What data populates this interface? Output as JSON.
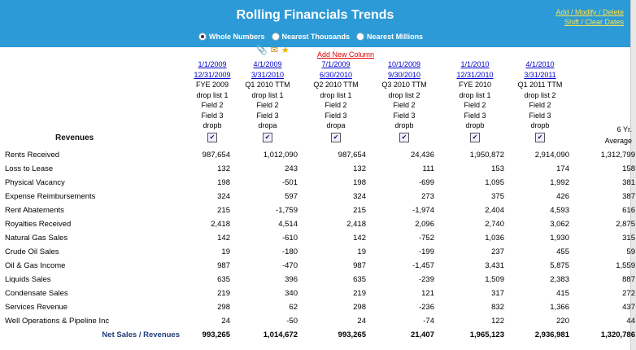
{
  "header": {
    "title": "Rolling Financials Trends",
    "links": [
      "Add / Modify / Delete",
      "Shift / Clear Dates"
    ]
  },
  "rounding": {
    "options": [
      "Whole Numbers",
      "Nearest Thousands",
      "Nearest Millions"
    ],
    "selected": 0
  },
  "toolbar": {
    "add_column": "Add New Column"
  },
  "columns": [
    {
      "date1": "1/1/2009",
      "date2": "12/31/2009",
      "period": "FYE 2009",
      "list": "drop list 1",
      "f2": "Field 2",
      "f3": "Field 3",
      "drop": "dropb"
    },
    {
      "date1": "4/1/2009",
      "date2": "3/31/2010",
      "period": "Q1 2010 TTM",
      "list": "drop list 1",
      "f2": "Field 2",
      "f3": "Field 3",
      "drop": "dropa"
    },
    {
      "date1": "7/1/2009",
      "date2": "6/30/2010",
      "period": "Q2 2010 TTM",
      "list": "drop list 1",
      "f2": "Field 2",
      "f3": "Field 3",
      "drop": "dropa"
    },
    {
      "date1": "10/1/2009",
      "date2": "9/30/2010",
      "period": "Q3 2010 TTM",
      "list": "drop list 2",
      "f2": "Field 2",
      "f3": "Field 3",
      "drop": "dropb"
    },
    {
      "date1": "1/1/2010",
      "date2": "12/31/2010",
      "period": "FYE 2010",
      "list": "drop list 1",
      "f2": "Field 2",
      "f3": "Field 3",
      "drop": "dropb"
    },
    {
      "date1": "4/1/2010",
      "date2": "3/31/2011",
      "period": "Q1 2011 TTM",
      "list": "drop list 2",
      "f2": "Field 2",
      "f3": "Field 3",
      "drop": "dropb"
    }
  ],
  "average_header": {
    "line1": "6 Yr.",
    "line2": "Average"
  },
  "revenues_label": "Revenues",
  "rows": [
    {
      "label": "Rents Received",
      "values": [
        "987,654",
        "1,012,090",
        "987,654",
        "24,436",
        "1,950,872",
        "2,914,090",
        "1,312,799"
      ]
    },
    {
      "label": "Loss to Lease",
      "values": [
        "132",
        "243",
        "132",
        "111",
        "153",
        "174",
        "158"
      ]
    },
    {
      "label": "Physical Vacancy",
      "values": [
        "198",
        "-501",
        "198",
        "-699",
        "1,095",
        "1,992",
        "381"
      ]
    },
    {
      "label": "Expense Reimbursements",
      "values": [
        "324",
        "597",
        "324",
        "273",
        "375",
        "426",
        "387"
      ]
    },
    {
      "label": "Rent Abatements",
      "values": [
        "215",
        "-1,759",
        "215",
        "-1,974",
        "2,404",
        "4,593",
        "616"
      ]
    },
    {
      "label": "Royalties Received",
      "values": [
        "2,418",
        "4,514",
        "2,418",
        "2,096",
        "2,740",
        "3,062",
        "2,875"
      ]
    },
    {
      "label": "Natural Gas Sales",
      "values": [
        "142",
        "-610",
        "142",
        "-752",
        "1,036",
        "1,930",
        "315"
      ]
    },
    {
      "label": "Crude Oil Sales",
      "values": [
        "19",
        "-180",
        "19",
        "-199",
        "237",
        "455",
        "59"
      ]
    },
    {
      "label": "Oil & Gas Income",
      "values": [
        "987",
        "-470",
        "987",
        "-1,457",
        "3,431",
        "5,875",
        "1,559"
      ]
    },
    {
      "label": "Liquids Sales",
      "values": [
        "635",
        "396",
        "635",
        "-239",
        "1,509",
        "2,383",
        "887"
      ]
    },
    {
      "label": "Condensate Sales",
      "values": [
        "219",
        "340",
        "219",
        "121",
        "317",
        "415",
        "272"
      ]
    },
    {
      "label": "Services Revenue",
      "values": [
        "298",
        "62",
        "298",
        "-236",
        "832",
        "1,366",
        "437"
      ]
    },
    {
      "label": "Well Operations & Pipeline Inc",
      "values": [
        "24",
        "-50",
        "24",
        "-74",
        "122",
        "220",
        "44"
      ]
    }
  ],
  "total": {
    "label": "Net Sales / Revenues",
    "values": [
      "993,265",
      "1,014,672",
      "993,265",
      "21,407",
      "1,965,123",
      "2,936,981",
      "1,320,786"
    ]
  }
}
